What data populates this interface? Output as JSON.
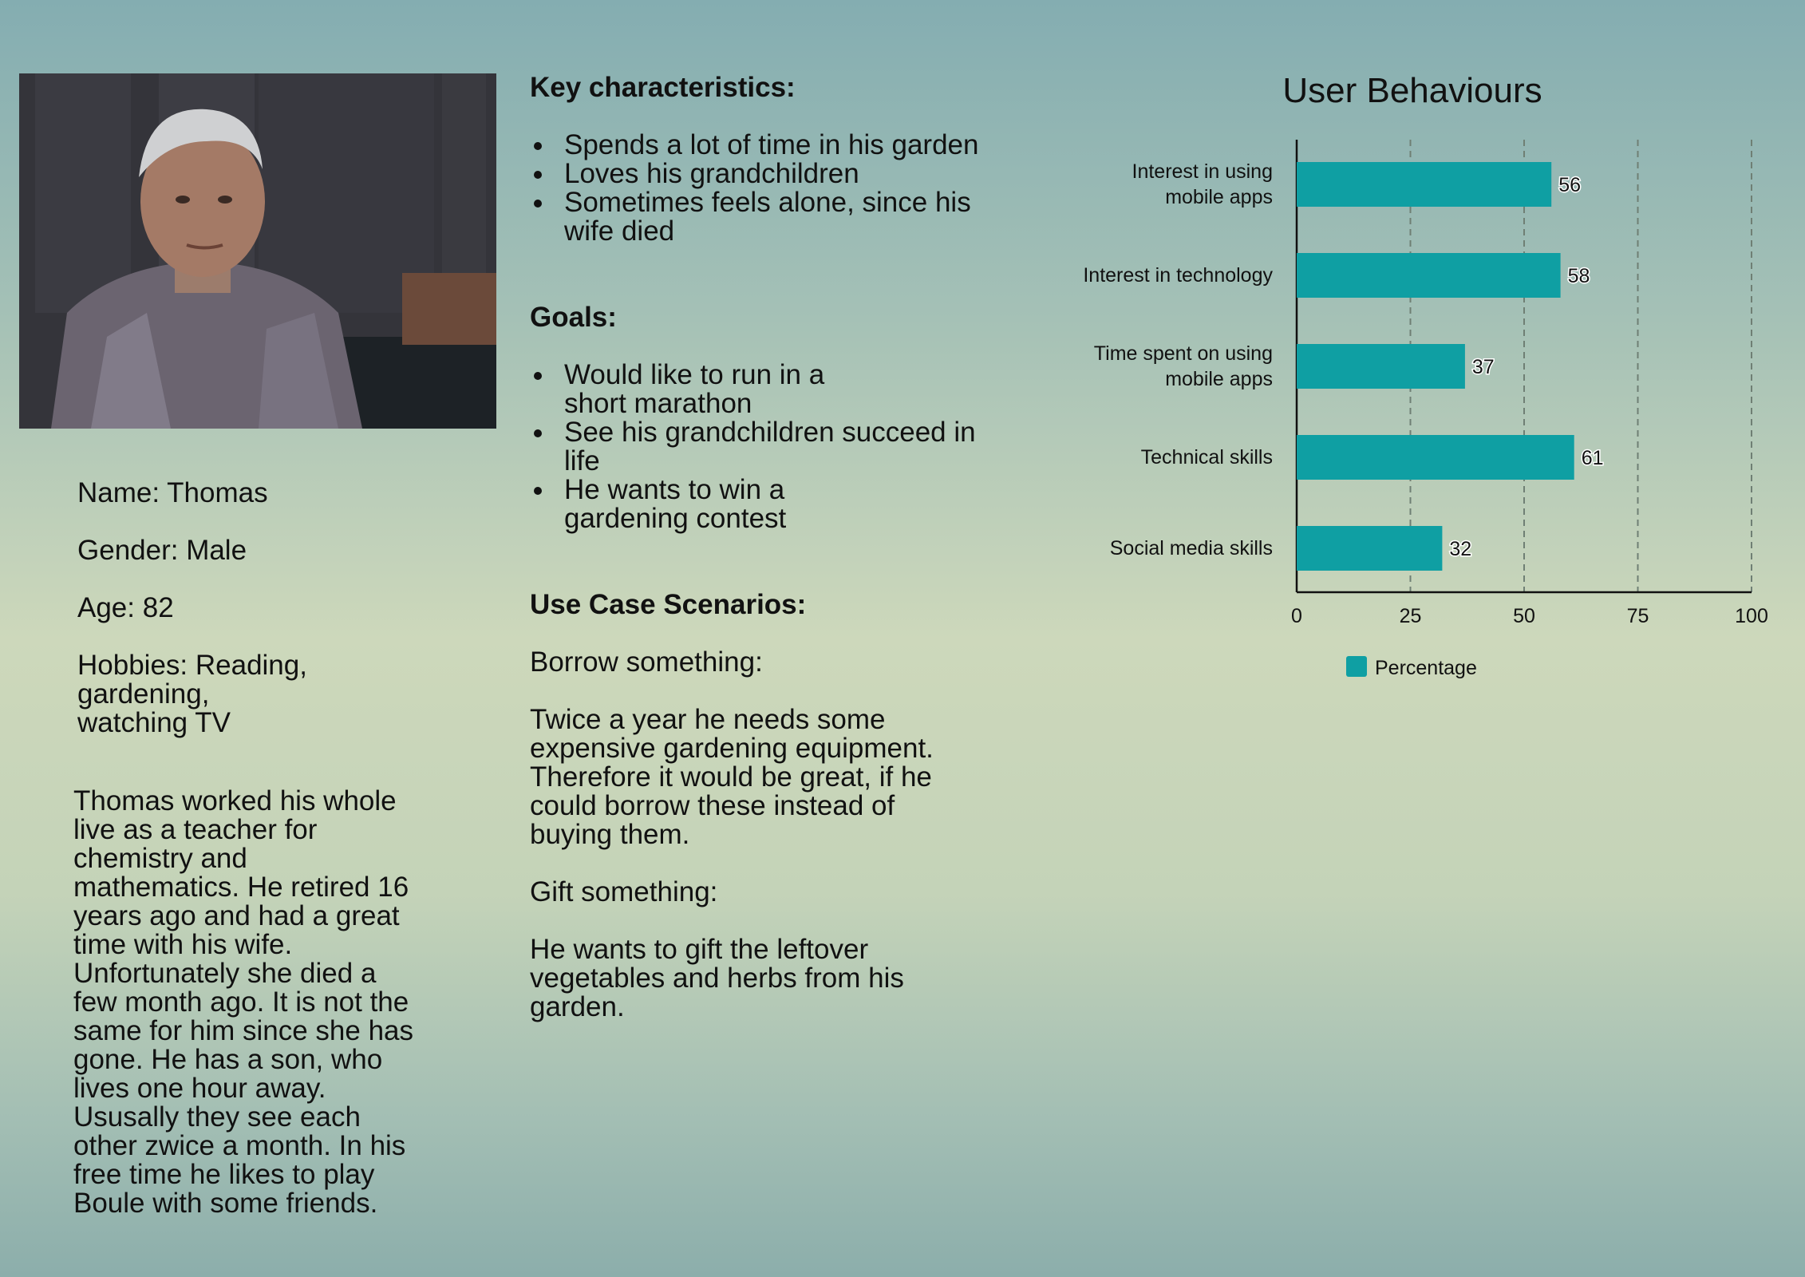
{
  "profile": {
    "name": "Name: Thomas",
    "gender": "Gender: Male",
    "age": "Age: 82",
    "hobbies": "Hobbies: Reading,\ngardening,\nwatching TV",
    "bio": "Thomas worked his whole\nlive as a teacher for\nchemistry and\nmathematics. He retired 16\nyears ago and had a great\ntime with his wife.\nUnfortunately she died a\nfew month ago. It is not the\nsame for him since she has\ngone. He has a son, who\nlives one hour away.\nUsusally they see each\nother zwice a month. In his\nfree time he likes to play\nBoule with some friends."
  },
  "characteristics": {
    "heading": "Key characteristics:",
    "items": [
      "Spends a lot of time in his garden",
      "Loves his grandchildren",
      "Sometimes feels alone, since his\nwife died"
    ]
  },
  "goals": {
    "heading": "Goals:",
    "items": [
      "Would like to run in a\nshort marathon",
      "See his grandchildren succeed in\nlife",
      "He wants to win a\ngardening contest"
    ]
  },
  "scenarios": {
    "heading": "Use Case Scenarios:",
    "borrow_title": "Borrow something:",
    "borrow_text": "Twice a year he needs some\nexpensive gardening equipment.\nTherefore it would be great, if he\ncould borrow these instead of\nbuying them.",
    "gift_title": "Gift something:",
    "gift_text": "He wants to gift the leftover\nvegetables and herbs from his\ngarden."
  },
  "colors": {
    "bar": "#0f9fa3",
    "text": "#111111"
  },
  "chart_data": {
    "type": "bar",
    "orientation": "horizontal",
    "title": "User Behaviours",
    "categories": [
      "Interest in using\nmobile apps",
      "Interest in technology",
      "Time spent on using\nmobile apps",
      "Technical skills",
      "Social media skills"
    ],
    "series": [
      {
        "name": "Percentage",
        "values": [
          56,
          58,
          37,
          61,
          32
        ]
      }
    ],
    "xlim": [
      0,
      100
    ],
    "ticks": [
      0,
      25,
      50,
      75,
      100
    ],
    "grid": "vertical dashed",
    "legend": "bottom-left",
    "data_labels": true
  }
}
